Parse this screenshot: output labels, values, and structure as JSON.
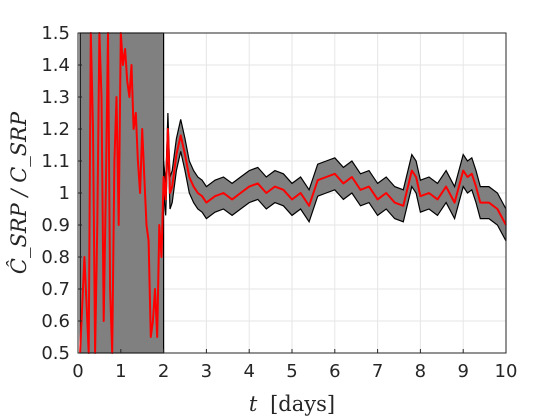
{
  "chart_data": {
    "type": "line",
    "xlabel_var": "t",
    "xlabel_unit": "[days]",
    "ylabel": "Ĉ_SRP / C_SRP",
    "xlim": [
      0,
      10
    ],
    "ylim": [
      0.5,
      1.5
    ],
    "x_ticks": [
      0,
      1,
      2,
      3,
      4,
      5,
      6,
      7,
      8,
      9,
      10
    ],
    "y_ticks": [
      0.5,
      0.6,
      0.7,
      0.8,
      0.9,
      1,
      1.1,
      1.2,
      1.3,
      1.4,
      1.5
    ],
    "x_tick_labels": [
      "0",
      "1",
      "2",
      "3",
      "4",
      "5",
      "6",
      "7",
      "8",
      "9",
      "10"
    ],
    "y_tick_labels": [
      "0.5",
      "0.6",
      "0.7",
      "0.8",
      "0.9",
      "1",
      "1.1",
      "1.2",
      "1.3",
      "1.4",
      "1.5"
    ],
    "grid": true,
    "colors": {
      "estimate": "#ff0000",
      "band": "#808080",
      "band_edge": "#000000"
    },
    "series": [
      {
        "role": "estimate",
        "x": [
          0.05,
          0.15,
          0.2,
          0.25,
          0.3,
          0.35,
          0.4,
          0.45,
          0.5,
          0.55,
          0.6,
          0.65,
          0.7,
          0.75,
          0.8,
          0.85,
          0.9,
          0.95,
          1.0,
          1.05,
          1.1,
          1.15,
          1.2,
          1.25,
          1.3,
          1.35,
          1.4,
          1.45,
          1.5,
          1.55,
          1.6,
          1.65,
          1.7,
          1.75,
          1.8,
          1.85,
          1.9,
          1.95,
          2.0,
          2.05,
          2.1,
          2.15,
          2.2,
          2.3,
          2.4,
          2.5,
          2.6,
          2.7,
          2.8,
          2.9,
          3.0,
          3.2,
          3.4,
          3.6,
          3.8,
          4.0,
          4.2,
          4.4,
          4.6,
          4.8,
          5.0,
          5.2,
          5.4,
          5.6,
          5.8,
          6.0,
          6.2,
          6.4,
          6.6,
          6.8,
          7.0,
          7.2,
          7.4,
          7.6,
          7.8,
          7.9,
          8.0,
          8.2,
          8.4,
          8.6,
          8.8,
          9.0,
          9.1,
          9.2,
          9.3,
          9.4,
          9.6,
          9.8,
          10.0
        ],
        "y": [
          0.5,
          0.8,
          0.65,
          0.5,
          1.5,
          1.2,
          0.5,
          0.9,
          1.5,
          1.3,
          0.6,
          1.0,
          1.5,
          0.7,
          0.5,
          1.1,
          1.3,
          0.9,
          1.5,
          1.4,
          1.45,
          1.35,
          1.3,
          1.4,
          1.2,
          1.25,
          1.1,
          1.0,
          1.2,
          1.05,
          0.9,
          0.85,
          0.55,
          0.6,
          0.7,
          0.55,
          0.9,
          0.8,
          1.05,
          0.98,
          1.2,
          1.0,
          1.02,
          1.12,
          1.18,
          1.12,
          1.05,
          1.02,
          1.0,
          0.99,
          0.97,
          0.99,
          1.0,
          0.98,
          1.0,
          1.02,
          1.03,
          1.0,
          1.02,
          1.01,
          0.98,
          1.0,
          0.96,
          1.04,
          1.05,
          1.06,
          1.03,
          1.05,
          1.01,
          1.02,
          0.98,
          1.0,
          0.97,
          0.96,
          1.07,
          1.05,
          0.99,
          1.0,
          0.98,
          1.02,
          0.97,
          1.07,
          1.05,
          1.06,
          1.02,
          0.97,
          0.97,
          0.95,
          0.9
        ]
      }
    ],
    "band_half_width_after_transient": 0.05,
    "band_transient_x_end": 2.0
  }
}
